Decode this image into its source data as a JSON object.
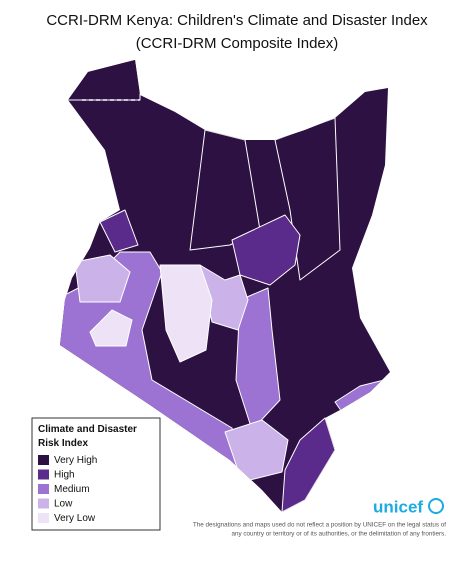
{
  "title": "CCRI-DRM Kenya: Children's Climate and Disaster Index",
  "subtitle": "(CCRI-DRM Composite Index)",
  "legend": {
    "title_lines": [
      "Climate and Disaster",
      "Risk Index"
    ],
    "items": [
      {
        "label": "Very High",
        "color": "#2c1142"
      },
      {
        "label": "High",
        "color": "#5b2b8c"
      },
      {
        "label": "Medium",
        "color": "#9c72d2"
      },
      {
        "label": "Low",
        "color": "#cbb2e8"
      },
      {
        "label": "Very Low",
        "color": "#ede2f6"
      }
    ]
  },
  "logo": "unicef",
  "disclaimer": [
    "The designations and maps used do not reflect a position by UNICEF on the legal status of",
    "any country or territory or of its authorities, or the delimitation of any frontiers."
  ]
}
